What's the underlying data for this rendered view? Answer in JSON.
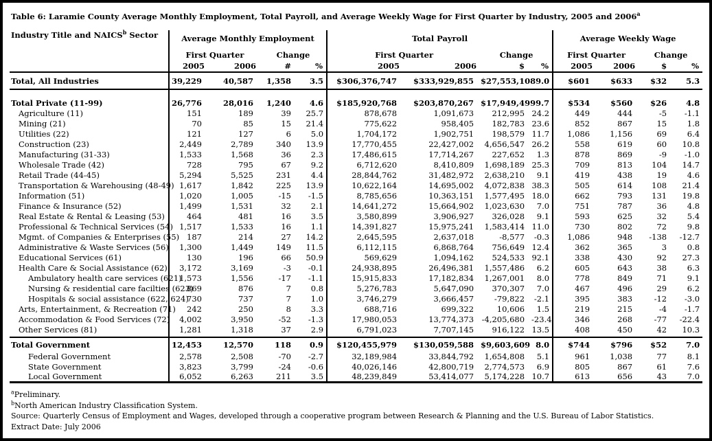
{
  "title": {
    "text": "Table 6: Laramie County Average Monthly Employment, Total Payroll, and Average Weekly Wage for First Quarter by Industry, 2005 and 2006",
    "sup": "a"
  },
  "header": {
    "industry": {
      "text": "Industry Title and NAICS",
      "sup": "b",
      "suffix": " Sector"
    },
    "groups": [
      {
        "label": "Average Monthly Employment",
        "first_quarter": "First Quarter",
        "change": "Change",
        "cols": [
          "2005",
          "2006",
          "#",
          "%"
        ]
      },
      {
        "label": "Total Payroll",
        "first_quarter": "First Quarter",
        "change": "Change",
        "cols": [
          "2005",
          "2006",
          "$",
          "%"
        ]
      },
      {
        "label": "Average Weekly Wage",
        "first_quarter": "First Quarter",
        "change": "Change",
        "cols": [
          "2005",
          "2006",
          "$",
          "%"
        ]
      }
    ]
  },
  "table": {
    "rows": [
      {
        "type": "data",
        "cls": "total-all",
        "indent": 0,
        "label": "Total, All Industries",
        "values": [
          "39,229",
          "40,587",
          "1,358",
          "3.5",
          "$306,376,747",
          "$333,929,855",
          "$27,553,108",
          "9.0",
          "$601",
          "$633",
          "$32",
          "5.3"
        ]
      },
      {
        "type": "gap"
      },
      {
        "type": "data",
        "cls": "total",
        "indent": 0,
        "label": "Total Private (11-99)",
        "values": [
          "26,776",
          "28,016",
          "1,240",
          "4.6",
          "$185,920,768",
          "$203,870,267",
          "$17,949,499",
          "9.7",
          "$534",
          "$560",
          "$26",
          "4.8"
        ]
      },
      {
        "type": "data",
        "cls": "",
        "indent": 1,
        "label": "Agriculture (11)",
        "values": [
          "151",
          "189",
          "39",
          "25.7",
          "878,678",
          "1,091,673",
          "212,995",
          "24.2",
          "449",
          "444",
          "-5",
          "-1.1"
        ]
      },
      {
        "type": "data",
        "cls": "",
        "indent": 1,
        "label": "Mining (21)",
        "values": [
          "70",
          "85",
          "15",
          "21.4",
          "775,622",
          "958,405",
          "182,783",
          "23.6",
          "852",
          "867",
          "15",
          "1.8"
        ]
      },
      {
        "type": "data",
        "cls": "",
        "indent": 1,
        "label": "Utilities (22)",
        "values": [
          "121",
          "127",
          "6",
          "5.0",
          "1,704,172",
          "1,902,751",
          "198,579",
          "11.7",
          "1,086",
          "1,156",
          "69",
          "6.4"
        ]
      },
      {
        "type": "data",
        "cls": "",
        "indent": 1,
        "label": "Construction (23)",
        "values": [
          "2,449",
          "2,789",
          "340",
          "13.9",
          "17,770,455",
          "22,427,002",
          "4,656,547",
          "26.2",
          "558",
          "619",
          "60",
          "10.8"
        ]
      },
      {
        "type": "data",
        "cls": "",
        "indent": 1,
        "label": "Manufacturing (31-33)",
        "values": [
          "1,533",
          "1,568",
          "36",
          "2.3",
          "17,486,615",
          "17,714,267",
          "227,652",
          "1.3",
          "878",
          "869",
          "-9",
          "-1.0"
        ]
      },
      {
        "type": "data",
        "cls": "",
        "indent": 1,
        "label": "Wholesale Trade (42)",
        "values": [
          "728",
          "795",
          "67",
          "9.2",
          "6,712,620",
          "8,410,809",
          "1,698,189",
          "25.3",
          "709",
          "813",
          "104",
          "14.7"
        ]
      },
      {
        "type": "data",
        "cls": "",
        "indent": 1,
        "label": "Retail Trade (44-45)",
        "values": [
          "5,294",
          "5,525",
          "231",
          "4.4",
          "28,844,762",
          "31,482,972",
          "2,638,210",
          "9.1",
          "419",
          "438",
          "19",
          "4.6"
        ]
      },
      {
        "type": "data",
        "cls": "",
        "indent": 1,
        "label": "Transportation & Warehousing (48-49)",
        "values": [
          "1,617",
          "1,842",
          "225",
          "13.9",
          "10,622,164",
          "14,695,002",
          "4,072,838",
          "38.3",
          "505",
          "614",
          "108",
          "21.4"
        ]
      },
      {
        "type": "data",
        "cls": "",
        "indent": 1,
        "label": "Information (51)",
        "values": [
          "1,020",
          "1,005",
          "-15",
          "-1.5",
          "8,785,656",
          "10,363,151",
          "1,577,495",
          "18.0",
          "662",
          "793",
          "131",
          "19.8"
        ]
      },
      {
        "type": "data",
        "cls": "",
        "indent": 1,
        "label": "Finance & Insurance (52)",
        "values": [
          "1,499",
          "1,531",
          "32",
          "2.1",
          "14,641,272",
          "15,664,902",
          "1,023,630",
          "7.0",
          "751",
          "787",
          "36",
          "4.8"
        ]
      },
      {
        "type": "data",
        "cls": "",
        "indent": 1,
        "label": "Real Estate & Rental & Leasing (53)",
        "values": [
          "464",
          "481",
          "16",
          "3.5",
          "3,580,899",
          "3,906,927",
          "326,028",
          "9.1",
          "593",
          "625",
          "32",
          "5.4"
        ]
      },
      {
        "type": "data",
        "cls": "",
        "indent": 1,
        "label": "Professional & Technical Services (54)",
        "values": [
          "1,517",
          "1,533",
          "16",
          "1.1",
          "14,391,827",
          "15,975,241",
          "1,583,414",
          "11.0",
          "730",
          "802",
          "72",
          "9.8"
        ]
      },
      {
        "type": "data",
        "cls": "",
        "indent": 1,
        "label": "Mgmt. of Companies & Enterprises (55)",
        "values": [
          "187",
          "214",
          "27",
          "14.2",
          "2,645,595",
          "2,637,018",
          "-8,577",
          "-0.3",
          "1,086",
          "948",
          "-138",
          "-12.7"
        ]
      },
      {
        "type": "data",
        "cls": "",
        "indent": 1,
        "label": "Administrative & Waste Services (56)",
        "values": [
          "1,300",
          "1,449",
          "149",
          "11.5",
          "6,112,115",
          "6,868,764",
          "756,649",
          "12.4",
          "362",
          "365",
          "3",
          "0.8"
        ]
      },
      {
        "type": "data",
        "cls": "",
        "indent": 1,
        "label": "Educational Services (61)",
        "values": [
          "130",
          "196",
          "66",
          "50.9",
          "569,629",
          "1,094,162",
          "524,533",
          "92.1",
          "338",
          "430",
          "92",
          "27.3"
        ]
      },
      {
        "type": "data",
        "cls": "",
        "indent": 1,
        "label": "Health Care & Social Assistance (62)",
        "values": [
          "3,172",
          "3,169",
          "-3",
          "-0.1",
          "24,938,895",
          "26,496,381",
          "1,557,486",
          "6.2",
          "605",
          "643",
          "38",
          "6.3"
        ]
      },
      {
        "type": "data",
        "cls": "",
        "indent": 2,
        "label": "Ambulatory health care services (621)",
        "values": [
          "1,573",
          "1,556",
          "-17",
          "-1.1",
          "15,915,833",
          "17,182,834",
          "1,267,001",
          "8.0",
          "778",
          "849",
          "71",
          "9.1"
        ]
      },
      {
        "type": "data",
        "cls": "",
        "indent": 2,
        "label": "Nursing & residential care facilties (623)",
        "values": [
          "869",
          "876",
          "7",
          "0.8",
          "5,276,783",
          "5,647,090",
          "370,307",
          "7.0",
          "467",
          "496",
          "29",
          "6.2"
        ]
      },
      {
        "type": "data",
        "cls": "",
        "indent": 2,
        "label": "Hospitals & social assistance (622, 624)",
        "values": [
          "730",
          "737",
          "7",
          "1.0",
          "3,746,279",
          "3,666,457",
          "-79,822",
          "-2.1",
          "395",
          "383",
          "-12",
          "-3.0"
        ]
      },
      {
        "type": "data",
        "cls": "",
        "indent": 1,
        "label": "Arts, Entertainment, & Recreation (71)",
        "values": [
          "242",
          "250",
          "8",
          "3.3",
          "688,716",
          "699,322",
          "10,606",
          "1.5",
          "219",
          "215",
          "-4",
          "-1.7"
        ]
      },
      {
        "type": "data",
        "cls": "",
        "indent": 1,
        "label": "Accommodation & Food Services (72)",
        "values": [
          "4,002",
          "3,950",
          "-52",
          "-1.3",
          "17,980,053",
          "13,774,373",
          "-4,205,680",
          "-23.4",
          "346",
          "268",
          "-77",
          "-22.4"
        ]
      },
      {
        "type": "data",
        "cls": "",
        "indent": 1,
        "label": "Other Services  (81)",
        "values": [
          "1,281",
          "1,318",
          "37",
          "2.9",
          "6,791,023",
          "7,707,145",
          "916,122",
          "13.5",
          "408",
          "450",
          "42",
          "10.3"
        ]
      },
      {
        "type": "rule"
      },
      {
        "type": "data",
        "cls": "total tgov",
        "indent": 0,
        "label": "Total Government",
        "values": [
          "12,453",
          "12,570",
          "118",
          "0.9",
          "$120,455,979",
          "$130,059,588",
          "$9,603,609",
          "8.0",
          "$744",
          "$796",
          "$52",
          "7.0"
        ]
      },
      {
        "type": "data",
        "cls": "",
        "indent": 2,
        "label": "Federal Government",
        "values": [
          "2,578",
          "2,508",
          "-70",
          "-2.7",
          "32,189,984",
          "33,844,792",
          "1,654,808",
          "5.1",
          "961",
          "1,038",
          "77",
          "8.1"
        ]
      },
      {
        "type": "data",
        "cls": "",
        "indent": 2,
        "label": "State Government",
        "values": [
          "3,823",
          "3,799",
          "-24",
          "-0.6",
          "40,026,146",
          "42,800,719",
          "2,774,573",
          "6.9",
          "805",
          "867",
          "61",
          "7.6"
        ]
      },
      {
        "type": "data",
        "cls": "last",
        "indent": 2,
        "label": "Local Government",
        "values": [
          "6,052",
          "6,263",
          "211",
          "3.5",
          "48,239,849",
          "53,414,077",
          "5,174,228",
          "10.7",
          "613",
          "656",
          "43",
          "7.0"
        ]
      }
    ]
  },
  "footnotes": [
    {
      "sup": "a",
      "text": "Preliminary."
    },
    {
      "sup": "b",
      "text": "North American Industry Classification System."
    },
    {
      "sup": "",
      "text": "Source: Quarterly Census of Employment and Wages, developed through a cooperative program between Research & Planning and the U.S. Bureau of Labor Statistics."
    },
    {
      "sup": "",
      "text": "Extract Date: July 2006"
    }
  ]
}
